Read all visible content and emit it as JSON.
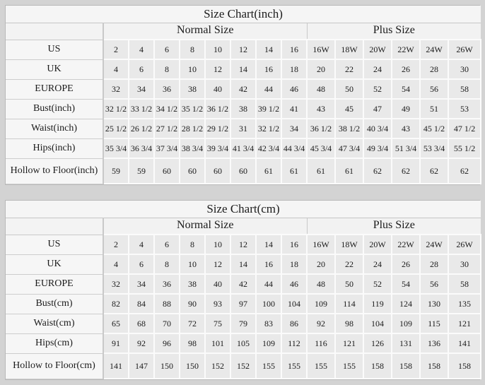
{
  "colors": {
    "page_background": "#d3d3d3",
    "data_cell_background": "#e9e9e9",
    "label_cell_background": "#f6f6f6",
    "grid_line": "#c9c9c9",
    "gutter_line": "#fbfbfb",
    "text": "#1b1b1b"
  },
  "tables": [
    {
      "title": "Size Chart(inch)",
      "groups": {
        "normal": "Normal Size",
        "plus": "Plus Size"
      },
      "rows": [
        {
          "label": "US",
          "normal": [
            "2",
            "4",
            "6",
            "8",
            "10",
            "12",
            "14",
            "16"
          ],
          "plus": [
            "16W",
            "18W",
            "20W",
            "22W",
            "24W",
            "26W"
          ]
        },
        {
          "label": "UK",
          "normal": [
            "4",
            "6",
            "8",
            "10",
            "12",
            "14",
            "16",
            "18"
          ],
          "plus": [
            "20",
            "22",
            "24",
            "26",
            "28",
            "30"
          ]
        },
        {
          "label": "EUROPE",
          "normal": [
            "32",
            "34",
            "36",
            "38",
            "40",
            "42",
            "44",
            "46"
          ],
          "plus": [
            "48",
            "50",
            "52",
            "54",
            "56",
            "58"
          ]
        },
        {
          "label": "Bust(inch)",
          "normal": [
            "32 1/2",
            "33 1/2",
            "34 1/2",
            "35 1/2",
            "36 1/2",
            "38",
            "39 1/2",
            "41"
          ],
          "plus": [
            "43",
            "45",
            "47",
            "49",
            "51",
            "53"
          ]
        },
        {
          "label": "Waist(inch)",
          "normal": [
            "25 1/2",
            "26 1/2",
            "27 1/2",
            "28 1/2",
            "29 1/2",
            "31",
            "32 1/2",
            "34"
          ],
          "plus": [
            "36 1/2",
            "38 1/2",
            "40 3/4",
            "43",
            "45 1/2",
            "47 1/2"
          ]
        },
        {
          "label": "Hips(inch)",
          "normal": [
            "35 3/4",
            "36 3/4",
            "37 3/4",
            "38 3/4",
            "39 3/4",
            "41 3/4",
            "42 3/4",
            "44 3/4"
          ],
          "plus": [
            "45 3/4",
            "47 3/4",
            "49 3/4",
            "51 3/4",
            "53 3/4",
            "55 1/2"
          ]
        },
        {
          "label": "Hollow to Floor(inch)",
          "normal": [
            "59",
            "59",
            "60",
            "60",
            "60",
            "60",
            "61",
            "61"
          ],
          "plus": [
            "61",
            "61",
            "62",
            "62",
            "62",
            "62"
          ]
        }
      ]
    },
    {
      "title": "Size Chart(cm)",
      "groups": {
        "normal": "Normal Size",
        "plus": "Plus Size"
      },
      "rows": [
        {
          "label": "US",
          "normal": [
            "2",
            "4",
            "6",
            "8",
            "10",
            "12",
            "14",
            "16"
          ],
          "plus": [
            "16W",
            "18W",
            "20W",
            "22W",
            "24W",
            "26W"
          ]
        },
        {
          "label": "UK",
          "normal": [
            "4",
            "6",
            "8",
            "10",
            "12",
            "14",
            "16",
            "18"
          ],
          "plus": [
            "20",
            "22",
            "24",
            "26",
            "28",
            "30"
          ]
        },
        {
          "label": "EUROPE",
          "normal": [
            "32",
            "34",
            "36",
            "38",
            "40",
            "42",
            "44",
            "46"
          ],
          "plus": [
            "48",
            "50",
            "52",
            "54",
            "56",
            "58"
          ]
        },
        {
          "label": "Bust(cm)",
          "normal": [
            "82",
            "84",
            "88",
            "90",
            "93",
            "97",
            "100",
            "104"
          ],
          "plus": [
            "109",
            "114",
            "119",
            "124",
            "130",
            "135"
          ]
        },
        {
          "label": "Waist(cm)",
          "normal": [
            "65",
            "68",
            "70",
            "72",
            "75",
            "79",
            "83",
            "86"
          ],
          "plus": [
            "92",
            "98",
            "104",
            "109",
            "115",
            "121"
          ]
        },
        {
          "label": "Hips(cm)",
          "normal": [
            "91",
            "92",
            "96",
            "98",
            "101",
            "105",
            "109",
            "112"
          ],
          "plus": [
            "116",
            "121",
            "126",
            "131",
            "136",
            "141"
          ]
        },
        {
          "label": "Hollow to Floor(cm)",
          "normal": [
            "141",
            "147",
            "150",
            "150",
            "152",
            "152",
            "155",
            "155"
          ],
          "plus": [
            "155",
            "155",
            "158",
            "158",
            "158",
            "158"
          ]
        }
      ]
    }
  ]
}
